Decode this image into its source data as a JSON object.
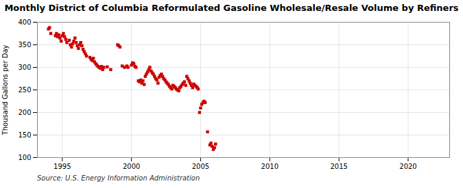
{
  "chart_data": {
    "type": "scatter",
    "title": "Monthly District of Columbia Reformulated Gasoline Wholesale/Resale Volume by Refiners",
    "ylabel": "Thousand Gallons per Day",
    "source": "Source: U.S. Energy Information Administration",
    "color": "#CC0000",
    "marker": "square",
    "grid": true,
    "xlim": [
      1993.2,
      2023.0
    ],
    "ylim": [
      100,
      400
    ],
    "xticks": [
      1995,
      2000,
      2005,
      2010,
      2015,
      2020
    ],
    "yticks": [
      100,
      150,
      200,
      250,
      300,
      350,
      400
    ],
    "x": [
      1994.0,
      1994.08,
      1994.17,
      1994.5,
      1994.58,
      1994.67,
      1994.75,
      1994.83,
      1994.92,
      1995.0,
      1995.08,
      1995.17,
      1995.25,
      1995.33,
      1995.5,
      1995.58,
      1995.67,
      1995.75,
      1995.83,
      1995.92,
      1996.0,
      1996.08,
      1996.17,
      1996.25,
      1996.33,
      1996.42,
      1996.5,
      1996.58,
      1996.67,
      1996.75,
      1997.0,
      1997.08,
      1997.17,
      1997.25,
      1997.33,
      1997.42,
      1997.5,
      1997.58,
      1997.67,
      1997.75,
      1997.83,
      1997.92,
      1998.0,
      1998.25,
      1998.5,
      1999.0,
      1999.08,
      1999.17,
      1999.33,
      1999.5,
      1999.67,
      1999.75,
      2000.0,
      2000.08,
      2000.17,
      2000.25,
      2000.33,
      2000.5,
      2000.58,
      2000.67,
      2000.75,
      2000.83,
      2000.92,
      2001.0,
      2001.08,
      2001.17,
      2001.25,
      2001.33,
      2001.42,
      2001.5,
      2001.58,
      2001.67,
      2001.75,
      2001.83,
      2001.92,
      2002.0,
      2002.08,
      2002.17,
      2002.25,
      2002.33,
      2002.42,
      2002.5,
      2002.58,
      2002.67,
      2002.75,
      2002.83,
      2002.92,
      2003.0,
      2003.08,
      2003.17,
      2003.25,
      2003.33,
      2003.42,
      2003.5,
      2003.58,
      2003.67,
      2003.75,
      2003.83,
      2003.92,
      2004.0,
      2004.08,
      2004.17,
      2004.25,
      2004.33,
      2004.42,
      2004.5,
      2004.58,
      2004.67,
      2004.75,
      2004.83,
      2004.92,
      2005.0,
      2005.08,
      2005.17,
      2005.25,
      2005.33,
      2005.5,
      2005.67,
      2005.75,
      2005.83,
      2005.92,
      2006.0,
      2006.08
    ],
    "values": [
      385,
      388,
      375,
      370,
      375,
      368,
      372,
      365,
      358,
      370,
      375,
      368,
      362,
      355,
      360,
      350,
      345,
      352,
      358,
      365,
      355,
      348,
      342,
      350,
      355,
      348,
      340,
      335,
      330,
      325,
      322,
      318,
      315,
      320,
      312,
      308,
      305,
      302,
      300,
      298,
      302,
      295,
      300,
      301,
      295,
      350,
      348,
      345,
      303,
      300,
      303,
      300,
      305,
      310,
      308,
      302,
      300,
      270,
      268,
      272,
      265,
      270,
      262,
      280,
      285,
      290,
      295,
      300,
      292,
      288,
      285,
      280,
      275,
      272,
      265,
      278,
      282,
      285,
      280,
      275,
      272,
      268,
      265,
      262,
      258,
      255,
      252,
      260,
      258,
      255,
      252,
      250,
      248,
      255,
      258,
      262,
      265,
      268,
      260,
      280,
      275,
      270,
      265,
      260,
      255,
      263,
      260,
      258,
      255,
      252,
      200,
      210,
      218,
      222,
      225,
      222,
      157,
      128,
      132,
      125,
      118,
      122,
      130
    ]
  }
}
